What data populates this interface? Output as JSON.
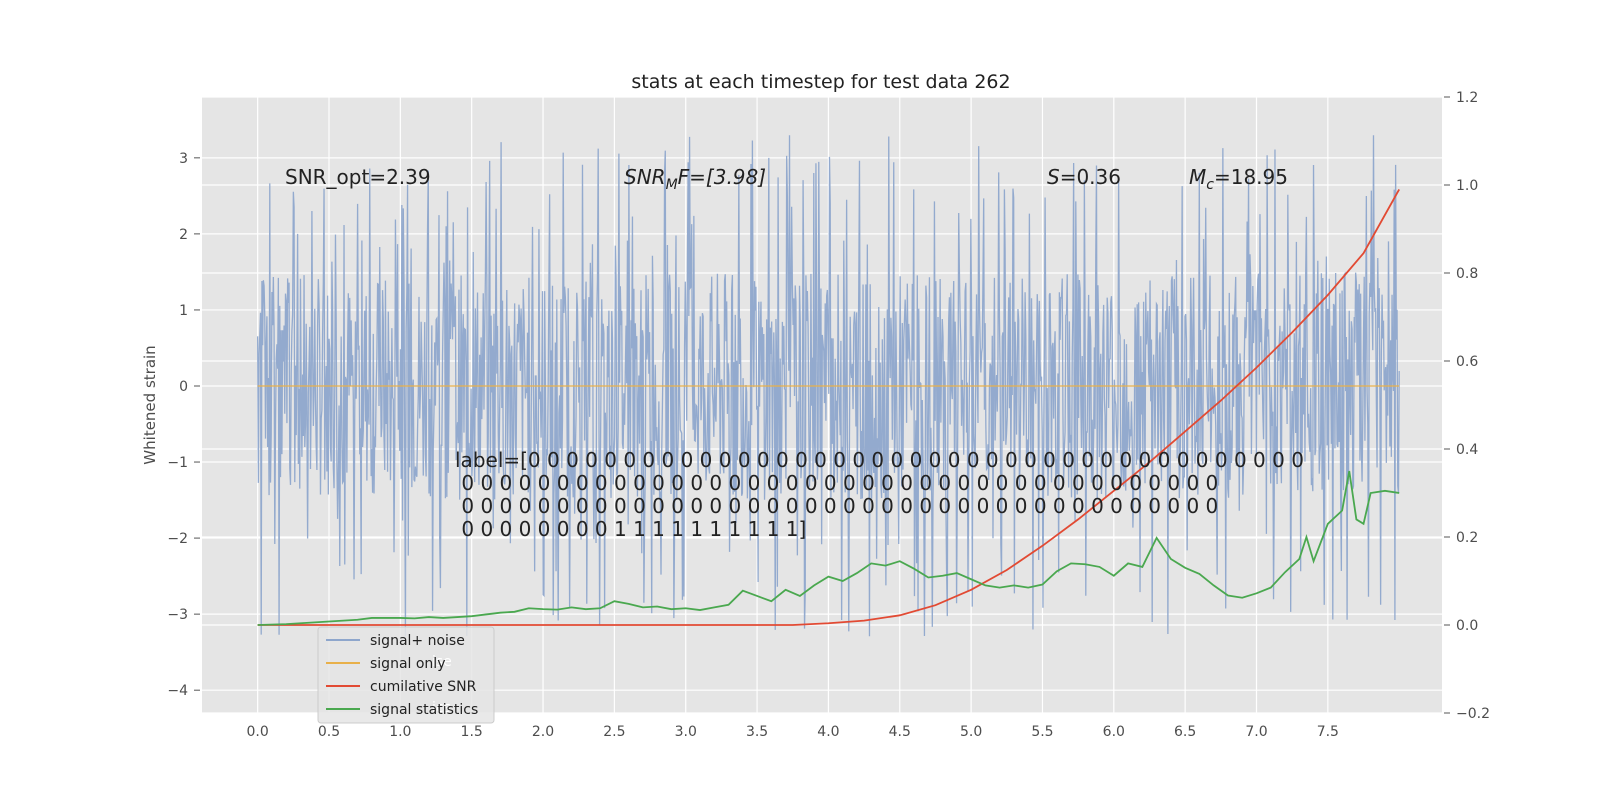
{
  "chart_data": {
    "type": "line",
    "title": "stats at each timestep for test data 262",
    "xlabel": "",
    "ylabel": "Whitened strain",
    "xlim": [
      -0.39,
      8.3
    ],
    "ylim": [
      -4.3,
      3.8
    ],
    "y2lim": [
      -0.2,
      1.2
    ],
    "x_ticks": [
      "0.0",
      "0.5",
      "1.0",
      "1.5",
      "2.0",
      "2.5",
      "3.0",
      "3.5",
      "4.0",
      "4.5",
      "5.0",
      "5.5",
      "6.0",
      "6.5",
      "7.0",
      "7.5"
    ],
    "y_ticks": [
      "3",
      "2",
      "1",
      "0",
      "−1",
      "−2",
      "−3",
      "−4"
    ],
    "y2_ticks": [
      "1.2",
      "1.0",
      "0.8",
      "0.6",
      "0.4",
      "0.2",
      "0.0",
      "−0.2"
    ],
    "grid": true,
    "annotations": {
      "snr_opt": "SNR_opt=2.39",
      "snr_mf_base": "SNR",
      "snr_mf_sub": "M",
      "snr_mf_rest": "F=[3.98]",
      "s_italic": "S",
      "s_rest": "=0.36",
      "mc_base": "M",
      "mc_sub": "c",
      "mc_rest": "=18.95",
      "label_lines": [
        "label=[0 0 0 0 0 0 0 0 0 0 0 0 0 0 0 0 0 0 0 0 0 0 0 0 0 0 0 0 0 0 0 0 0 0 0 0 0 0 0 0 0",
        " 0 0 0 0 0 0 0 0 0 0 0 0 0 0 0 0 0 0 0 0 0 0 0 0 0 0 0 0 0 0 0 0 0 0 0 0 0 0 0 0",
        " 0 0 0 0 0 0 0 0 0 0 0 0 0 0 0 0 0 0 0 0 0 0 0 0 0 0 0 0 0 0 0 0 0 0 0 0 0 0 0 0",
        " 0 0 0 0 0 0 0 0 1 1 1 1 1 1 1 1 1 1]"
      ]
    },
    "series": [
      {
        "name": "signal+ noise",
        "axis": "left",
        "color": "#8ea6cc",
        "description": "whitened noisy strain, values roughly between -4 and 3.5",
        "noise_amplitude": 1.5,
        "n_points": 1600,
        "x_range": [
          0,
          8.0
        ]
      },
      {
        "name": "signal only",
        "axis": "left",
        "color": "#e8b04a",
        "x": [
          0,
          8.0
        ],
        "values": [
          0,
          0
        ]
      },
      {
        "name": "cumilative SNR",
        "axis": "right",
        "color": "#e24a33",
        "x": [
          0.0,
          0.5,
          1.0,
          1.5,
          2.0,
          2.5,
          3.0,
          3.5,
          3.75,
          4.0,
          4.25,
          4.5,
          4.75,
          5.0,
          5.25,
          5.5,
          5.75,
          6.0,
          6.25,
          6.5,
          6.75,
          7.0,
          7.25,
          7.5,
          7.75,
          8.0
        ],
        "values": [
          0.0,
          0.0,
          0.0,
          0.0,
          0.0,
          0.0,
          0.0,
          0.0,
          0.0,
          0.004,
          0.01,
          0.022,
          0.045,
          0.08,
          0.125,
          0.18,
          0.24,
          0.305,
          0.37,
          0.44,
          0.51,
          0.585,
          0.665,
          0.75,
          0.845,
          0.99
        ]
      },
      {
        "name": "signal statistics",
        "axis": "right",
        "color": "#4aa84f",
        "x": [
          0.0,
          0.2,
          0.4,
          0.6,
          0.7,
          0.8,
          1.0,
          1.1,
          1.2,
          1.3,
          1.4,
          1.5,
          1.6,
          1.7,
          1.8,
          1.9,
          2.0,
          2.1,
          2.2,
          2.3,
          2.4,
          2.5,
          2.6,
          2.7,
          2.8,
          2.9,
          3.0,
          3.1,
          3.2,
          3.3,
          3.4,
          3.5,
          3.6,
          3.7,
          3.8,
          3.9,
          4.0,
          4.1,
          4.2,
          4.3,
          4.4,
          4.5,
          4.6,
          4.7,
          4.8,
          4.9,
          5.0,
          5.1,
          5.2,
          5.3,
          5.4,
          5.5,
          5.6,
          5.7,
          5.8,
          5.9,
          6.0,
          6.1,
          6.2,
          6.3,
          6.4,
          6.5,
          6.6,
          6.7,
          6.8,
          6.9,
          7.0,
          7.1,
          7.2,
          7.3,
          7.35,
          7.4,
          7.5,
          7.6,
          7.65,
          7.7,
          7.75,
          7.8,
          7.9,
          8.0
        ],
        "values": [
          0.0,
          0.002,
          0.006,
          0.01,
          0.012,
          0.016,
          0.016,
          0.015,
          0.018,
          0.016,
          0.018,
          0.02,
          0.024,
          0.028,
          0.03,
          0.038,
          0.036,
          0.035,
          0.04,
          0.036,
          0.038,
          0.054,
          0.048,
          0.04,
          0.042,
          0.036,
          0.038,
          0.034,
          0.04,
          0.046,
          0.078,
          0.066,
          0.054,
          0.08,
          0.066,
          0.09,
          0.11,
          0.1,
          0.118,
          0.14,
          0.135,
          0.145,
          0.128,
          0.108,
          0.112,
          0.118,
          0.104,
          0.09,
          0.085,
          0.09,
          0.085,
          0.092,
          0.122,
          0.14,
          0.138,
          0.132,
          0.112,
          0.14,
          0.132,
          0.198,
          0.15,
          0.13,
          0.116,
          0.09,
          0.067,
          0.062,
          0.072,
          0.085,
          0.12,
          0.15,
          0.2,
          0.145,
          0.23,
          0.26,
          0.35,
          0.24,
          0.23,
          0.3,
          0.305,
          0.3
        ]
      }
    ],
    "legend": {
      "position": "lower-left",
      "entries": [
        "signal+ noise",
        "signal only",
        "cumilative SNR",
        "signal statistics"
      ],
      "ghost_fragments": [
        "ise",
        "ics"
      ]
    }
  }
}
